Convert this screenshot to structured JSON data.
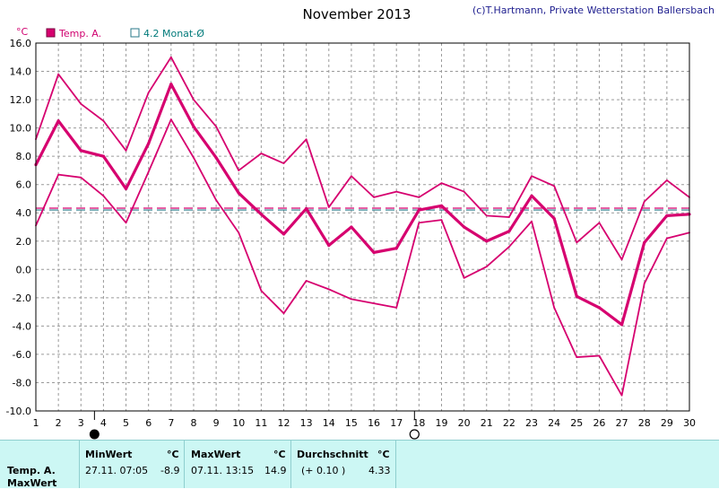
{
  "header": {
    "title": "November 2013",
    "copyright": "(c)T.Hartmann, Private Wetterstation Ballersbach"
  },
  "legend": {
    "series_a": "Temp. A.",
    "series_b": "4.2 Monat-Ø"
  },
  "colors": {
    "series": "#d6006f",
    "avg_line_a": "#d6006f",
    "avg_line_b": "#2a7a8a",
    "grid": "#9a9a9a",
    "footer_bg": "#ccf7f4"
  },
  "moon_phases": [
    {
      "name": "new-moon",
      "day": 3.6
    },
    {
      "name": "full-moon",
      "day": 17.8
    }
  ],
  "chart_data": {
    "type": "line",
    "title": "November 2013",
    "ylabel": "°C",
    "x": [
      1,
      2,
      3,
      4,
      5,
      6,
      7,
      8,
      9,
      10,
      11,
      12,
      13,
      14,
      15,
      16,
      17,
      18,
      19,
      20,
      21,
      22,
      23,
      24,
      25,
      26,
      27,
      28,
      29,
      30
    ],
    "xlim": [
      1,
      30
    ],
    "ylim": [
      -10,
      16
    ],
    "yticks": [
      "16.0",
      "14.0",
      "12.0",
      "10.0",
      "8.0",
      "6.0",
      "4.0",
      "2.0",
      "0.0",
      "-2.0",
      "-4.0",
      "-6.0",
      "-8.0",
      "-10.0"
    ],
    "xticks": [
      "1",
      "2",
      "3",
      "4",
      "5",
      "6",
      "7",
      "8",
      "9",
      "10",
      "11",
      "12",
      "13",
      "14",
      "15",
      "16",
      "17",
      "18",
      "19",
      "20",
      "21",
      "22",
      "23",
      "24",
      "25",
      "26",
      "27",
      "28",
      "29",
      "30"
    ],
    "grid": true,
    "series": [
      {
        "name": "Temp. A.",
        "role": "max",
        "values": [
          9.2,
          13.8,
          11.7,
          10.5,
          8.4,
          12.5,
          15.0,
          12.0,
          10.1,
          7.0,
          8.2,
          7.5,
          9.2,
          4.4,
          6.6,
          5.1,
          5.5,
          5.1,
          6.1,
          5.5,
          3.8,
          3.7,
          6.6,
          5.9,
          1.9,
          3.3,
          0.7,
          4.8,
          6.3,
          5.1
        ]
      },
      {
        "name": "Temp. A.",
        "role": "mean",
        "values": [
          7.4,
          10.5,
          8.4,
          8.0,
          5.7,
          8.9,
          13.1,
          10.1,
          7.9,
          5.4,
          3.9,
          2.5,
          4.3,
          1.7,
          3.0,
          1.2,
          1.5,
          4.2,
          4.5,
          3.0,
          2.0,
          2.7,
          5.2,
          3.6,
          -1.9,
          -2.7,
          -3.9,
          1.9,
          3.8,
          3.9
        ]
      },
      {
        "name": "Temp. A.",
        "role": "min",
        "values": [
          3.1,
          6.7,
          6.5,
          5.2,
          3.3,
          6.9,
          10.6,
          7.9,
          4.9,
          2.6,
          -1.5,
          -3.1,
          -0.8,
          -1.4,
          -2.1,
          -2.4,
          -2.7,
          3.3,
          3.5,
          -0.6,
          0.2,
          1.6,
          3.4,
          -2.7,
          -6.2,
          -6.1,
          -8.9,
          -1.0,
          2.2,
          2.6
        ]
      }
    ],
    "reference_lines": [
      {
        "name": "Temp. A.",
        "value": 4.33
      },
      {
        "name": "4.2 Monat-Ø",
        "value": 4.2
      }
    ]
  },
  "footer": {
    "row_label": "Temp. A.",
    "row_label2": "MaxWert",
    "min_header": "MinWert",
    "min_unit": "°C",
    "min_datetime": "27.11.  07:05",
    "min_value": "-8.9",
    "max_header": "MaxWert",
    "max_unit": "°C",
    "max_datetime": "07.11.  13:15",
    "max_value": "14.9",
    "avg_header": "Durchschnitt",
    "avg_unit": "°C",
    "avg_delta": "(+ 0.10 )",
    "avg_value": "4.33"
  }
}
